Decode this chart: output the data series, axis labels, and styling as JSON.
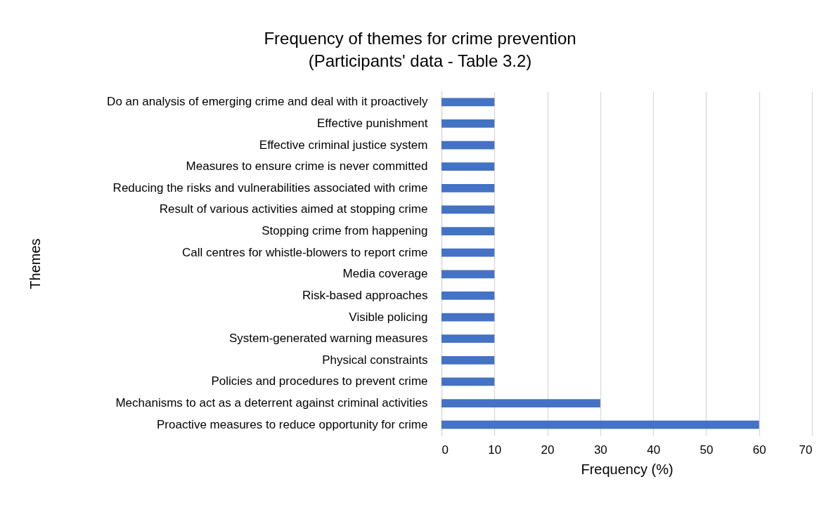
{
  "chart_data": {
    "type": "bar",
    "orientation": "horizontal",
    "title": "Frequency of themes for crime prevention",
    "subtitle": "(Participants' data - Table 3.2)",
    "xlabel": "Frequency (%)",
    "ylabel": "Themes",
    "categories": [
      "Do an analysis of emerging crime and deal with it proactively",
      "Effective punishment",
      "Effective criminal justice system ",
      "Measures to ensure crime is never committed",
      "Reducing the risks and vulnerabilities associated with crime",
      "Result of various activities aimed at stopping crime",
      "Stopping crime from happening",
      "Call centres for whistle-blowers to report crime",
      "Media coverage",
      "Risk-based approaches",
      "Visible policing",
      "System-generated warning measures",
      "Physical constraints",
      "Policies and procedures to prevent crime",
      "Mechanisms to act as a deterrent against criminal activities",
      "Proactive measures to reduce opportunity for crime"
    ],
    "values": [
      10,
      10,
      10,
      10,
      10,
      10,
      10,
      10,
      10,
      10,
      10,
      10,
      10,
      10,
      30,
      60
    ],
    "color": "#4472c4",
    "xlim": [
      0,
      70
    ],
    "xticks": [
      0,
      10,
      20,
      30,
      40,
      50,
      60,
      70
    ],
    "grid": "x"
  }
}
